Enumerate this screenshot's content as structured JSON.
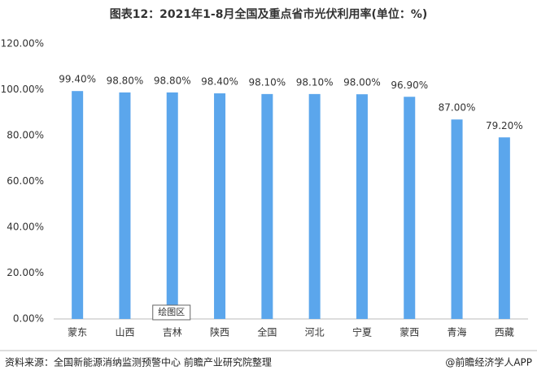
{
  "chart_data": {
    "type": "bar",
    "title": "图表12：2021年1-8月全国及重点省市光伏利用率(单位：%)",
    "categories": [
      "蒙东",
      "山西",
      "吉林",
      "陕西",
      "全国",
      "河北",
      "宁夏",
      "蒙西",
      "青海",
      "西藏"
    ],
    "values": [
      99.4,
      98.8,
      98.8,
      98.4,
      98.1,
      98.1,
      98.0,
      96.9,
      87.0,
      79.2
    ],
    "value_labels": [
      "99.40%",
      "98.80%",
      "98.80%",
      "98.40%",
      "98.10%",
      "98.10%",
      "98.00%",
      "96.90%",
      "87.00%",
      "79.20%"
    ],
    "color": "#5ba6ec",
    "ylim": [
      0,
      120
    ],
    "yticks": [
      {
        "value": 0,
        "label": "0.00%"
      },
      {
        "value": 20,
        "label": "20.00%"
      },
      {
        "value": 40,
        "label": "40.00%"
      },
      {
        "value": 60,
        "label": "60.00%"
      },
      {
        "value": 80,
        "label": "80.00%"
      },
      {
        "value": 100,
        "label": "100.00%"
      },
      {
        "value": 120,
        "label": "120.00%"
      }
    ],
    "grid": false,
    "annotation": "绘图区",
    "source": "资料来源：全国新能源消纳监测预警中心 前瞻产业研究院整理",
    "credit": "@前瞻经济学人APP"
  }
}
